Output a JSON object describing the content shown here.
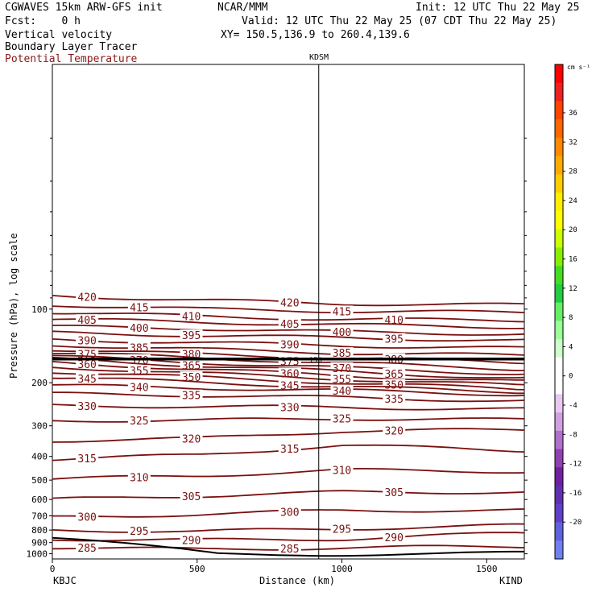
{
  "header": {
    "model": "CGWAVES 15km ARW-GFS init",
    "org": "NCAR/MMM",
    "init": "Init: 12 UTC Thu 22 May 25",
    "fcst": "Fcst:    0 h",
    "valid": "Valid: 12 UTC Thu 22 May 25 (07 CDT Thu 22 May 25)",
    "fields": [
      "Vertical velocity",
      "Boundary Layer Tracer",
      "Potential Temperature"
    ],
    "xy": "XY= 150.5,136.9 to 260.4,139.6",
    "colors": {
      "potential_temperature": "#7a1010",
      "text": "#000000"
    }
  },
  "chart_data": {
    "type": "line",
    "subtype": "cross-section contour",
    "ylabel": "Pressure (hPa), log scale",
    "xlabel": "Distance (km)",
    "x_ticks": [
      0,
      500,
      1000,
      1500
    ],
    "xlim": [
      0,
      1630
    ],
    "y_ticks": [
      100,
      200,
      300,
      400,
      500,
      600,
      700,
      800,
      900,
      1000
    ],
    "y_scale": "log",
    "ylim": [
      1050,
      10
    ],
    "left_endpoint": "KBJC",
    "right_endpoint": "KIND",
    "mid_station": "KDSM",
    "mid_station_distance_km": 920,
    "pbl_line_label": "150",
    "pbl_line_pressure_hPa": 160,
    "colorbar": {
      "units": "cm s⁻¹",
      "ticks": [
        "36",
        "32",
        "28",
        "24",
        "20",
        "16",
        "12",
        "8",
        "4",
        "0",
        "-4",
        "-8",
        "-12",
        "-16",
        "-20"
      ]
    },
    "isentropes": [
      {
        "theta": 420,
        "x": [
          0,
          500,
          1000,
          1500
        ],
        "p": [
          88,
          92,
          95,
          96
        ]
      },
      {
        "theta": 415,
        "x": [
          0,
          500,
          1000,
          1500
        ],
        "p": [
          96,
          100,
          102,
          103
        ]
      },
      {
        "theta": 410,
        "x": [
          0,
          500,
          1000,
          1500
        ],
        "p": [
          103,
          107,
          110,
          111
        ]
      },
      {
        "theta": 405,
        "x": [
          0,
          500,
          1000,
          1500
        ],
        "p": [
          110,
          113,
          116,
          118
        ]
      },
      {
        "theta": 400,
        "x": [
          0,
          500,
          1000,
          1500
        ],
        "p": [
          118,
          120,
          124,
          126
        ]
      },
      {
        "theta": 395,
        "x": [
          0,
          500,
          1000,
          1500
        ],
        "p": [
          125,
          128,
          131,
          134
        ]
      },
      {
        "theta": 390,
        "x": [
          0,
          500,
          1000,
          1500
        ],
        "p": [
          133,
          137,
          141,
          144
        ]
      },
      {
        "theta": 385,
        "x": [
          0,
          500,
          1000,
          1500
        ],
        "p": [
          140,
          146,
          151,
          154
        ]
      },
      {
        "theta": 380,
        "x": [
          0,
          500,
          1000,
          1500
        ],
        "p": [
          146,
          153,
          158,
          164
        ]
      },
      {
        "theta": 375,
        "x": [
          0,
          500,
          1000,
          1500
        ],
        "p": [
          151,
          158,
          166,
          174
        ]
      },
      {
        "theta": 370,
        "x": [
          0,
          500,
          1000,
          1500
        ],
        "p": [
          156,
          165,
          174,
          182
        ]
      },
      {
        "theta": 365,
        "x": [
          0,
          500,
          1000,
          1500
        ],
        "p": [
          160,
          170,
          180,
          190
        ]
      },
      {
        "theta": 360,
        "x": [
          0,
          500,
          1000,
          1500
        ],
        "p": [
          165,
          176,
          187,
          196
        ]
      },
      {
        "theta": 355,
        "x": [
          0,
          500,
          1000,
          1500
        ],
        "p": [
          172,
          183,
          193,
          203
        ]
      },
      {
        "theta": 350,
        "x": [
          0,
          500,
          1000,
          1500
        ],
        "p": [
          180,
          190,
          200,
          210
        ]
      },
      {
        "theta": 345,
        "x": [
          0,
          500,
          1000,
          1500
        ],
        "p": [
          190,
          199,
          208,
          216
        ]
      },
      {
        "theta": 340,
        "x": [
          0,
          500,
          1000,
          1500
        ],
        "p": [
          205,
          210,
          215,
          222
        ]
      },
      {
        "theta": 335,
        "x": [
          0,
          500,
          1000,
          1500
        ],
        "p": [
          222,
          225,
          230,
          236
        ]
      },
      {
        "theta": 330,
        "x": [
          0,
          500,
          1000,
          1500
        ],
        "p": [
          248,
          250,
          252,
          256
        ]
      },
      {
        "theta": 325,
        "x": [
          0,
          500,
          1000,
          1500
        ],
        "p": [
          285,
          285,
          280,
          283
        ]
      },
      {
        "theta": 320,
        "x": [
          0,
          500,
          1000,
          1500
        ],
        "p": [
          345,
          338,
          315,
          312
        ]
      },
      {
        "theta": 315,
        "x": [
          0,
          500,
          1000,
          1500
        ],
        "p": [
          410,
          395,
          360,
          375
        ]
      },
      {
        "theta": 310,
        "x": [
          0,
          500,
          1000,
          1500
        ],
        "p": [
          495,
          480,
          455,
          460
        ]
      },
      {
        "theta": 305,
        "x": [
          0,
          500,
          1000,
          1500
        ],
        "p": [
          600,
          580,
          560,
          560
        ]
      },
      {
        "theta": 300,
        "x": [
          0,
          500,
          1000,
          1500
        ],
        "p": [
          710,
          690,
          665,
          665
        ]
      },
      {
        "theta": 295,
        "x": [
          0,
          500,
          1000,
          1500
        ],
        "p": [
          800,
          810,
          790,
          770
        ]
      },
      {
        "theta": 290,
        "x": [
          0,
          500,
          1000,
          1500
        ],
        "p": [
          870,
          880,
          870,
          830
        ]
      },
      {
        "theta": 285,
        "x": [
          0,
          500,
          1000,
          1500
        ],
        "p": [
          940,
          960,
          945,
          935
        ]
      }
    ]
  }
}
